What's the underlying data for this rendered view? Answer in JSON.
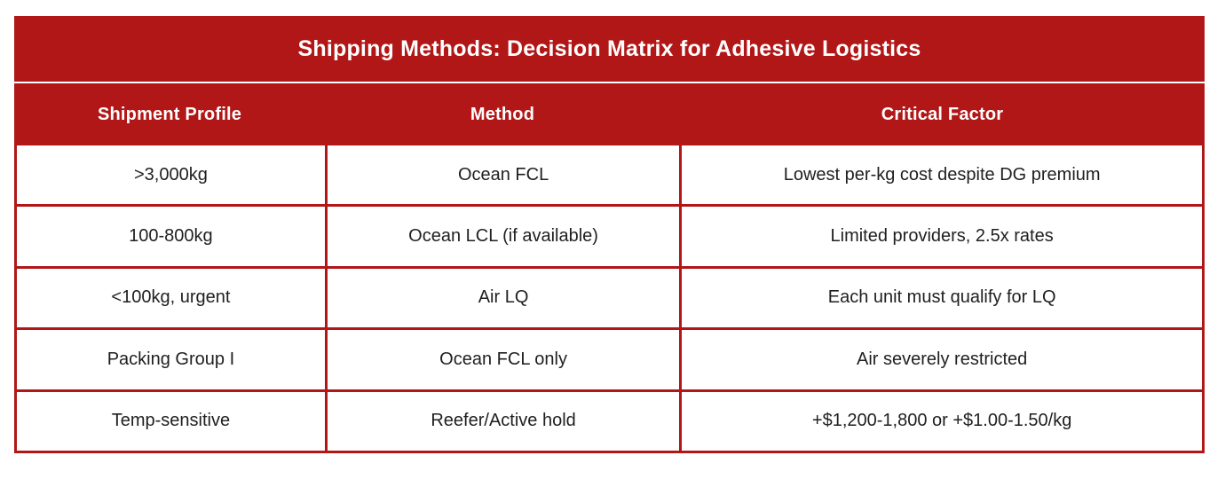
{
  "table": {
    "title": "Shipping Methods: Decision Matrix for Adhesive Logistics",
    "columns": [
      "Shipment Profile",
      "Method",
      "Critical Factor"
    ],
    "rows": [
      {
        "profile": ">3,000kg",
        "method": "Ocean FCL",
        "factor": "Lowest per-kg cost despite DG premium"
      },
      {
        "profile": "100-800kg",
        "method": "Ocean LCL (if available)",
        "factor": "Limited providers, 2.5x rates"
      },
      {
        "profile": "<100kg, urgent",
        "method": "Air LQ",
        "factor": "Each unit must qualify for LQ"
      },
      {
        "profile": "Packing Group I",
        "method": "Ocean FCL only",
        "factor": "Air severely restricted"
      },
      {
        "profile": "Temp-sensitive",
        "method": "Reefer/Active hold",
        "factor": "+$1,200-1,800 or +$1.00-1.50/kg"
      }
    ],
    "colors": {
      "accent_red": "#B11717",
      "header_text": "#FFFFFF",
      "cell_text": "#1F1F1F",
      "background": "#FFFFFF"
    }
  },
  "chart_data": {
    "type": "table",
    "title": "Shipping Methods: Decision Matrix for Adhesive Logistics",
    "columns": [
      "Shipment Profile",
      "Method",
      "Critical Factor"
    ],
    "rows": [
      [
        ">3,000kg",
        "Ocean FCL",
        "Lowest per-kg cost despite DG premium"
      ],
      [
        "100-800kg",
        "Ocean LCL (if available)",
        "Limited providers, 2.5x rates"
      ],
      [
        "<100kg, urgent",
        "Air LQ",
        "Each unit must qualify for LQ"
      ],
      [
        "Packing Group I",
        "Ocean FCL only",
        "Air severely restricted"
      ],
      [
        "Temp-sensitive",
        "Reefer/Active hold",
        "+$1,200-1,800 or +$1.00-1.50/kg"
      ]
    ],
    "layout": {
      "header_background": "#B11717",
      "grid_lines": "red, ~3px",
      "cell_background": "#FFFFFF",
      "text_alignment": "center"
    }
  }
}
